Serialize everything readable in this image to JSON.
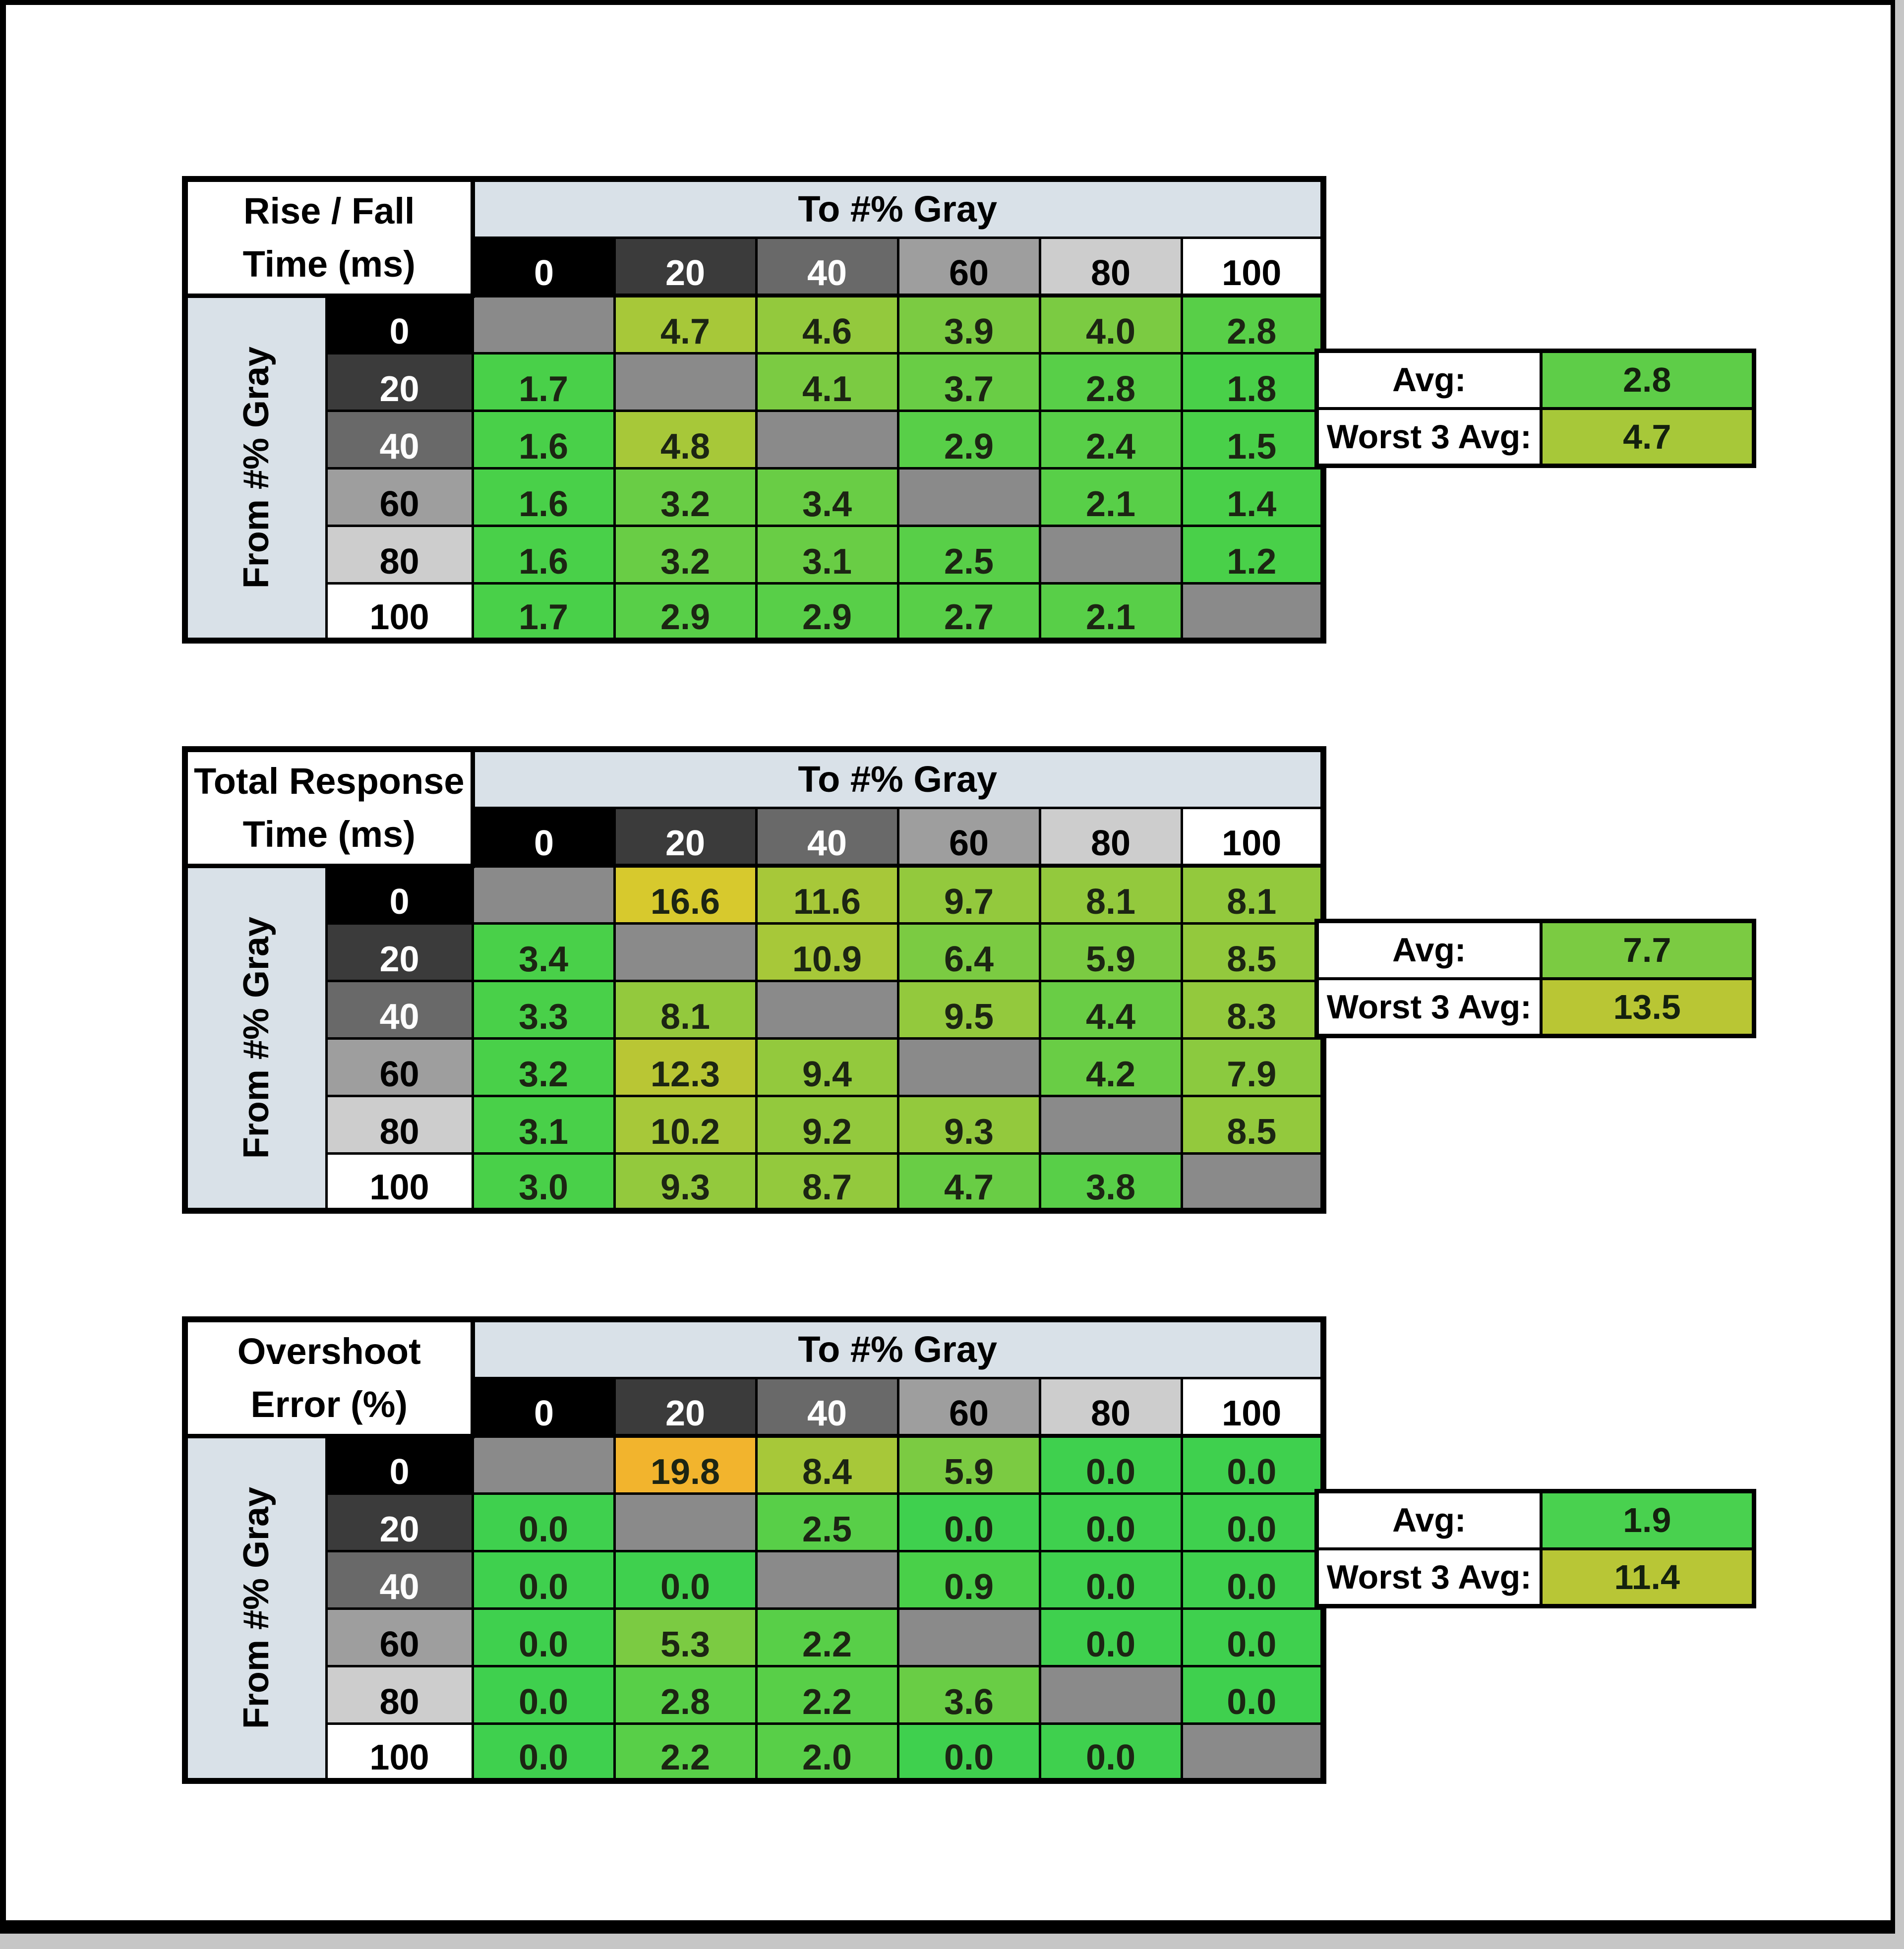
{
  "page": {
    "outer_background": "#c6c6c6",
    "canvas_background": "#ffffff",
    "frame_color": "#000000"
  },
  "shared": {
    "to_label": "To #% Gray",
    "from_label": "From #% Gray",
    "avg_label": "Avg:",
    "worst_label": "Worst 3 Avg:",
    "gray_levels": [
      "0",
      "20",
      "40",
      "60",
      "80",
      "100"
    ],
    "level_bg": [
      "#000000",
      "#3b3b3b",
      "#696969",
      "#9e9e9e",
      "#cdcdcd",
      "#ffffff"
    ],
    "level_fg": [
      "#ffffff",
      "#ffffff",
      "#ffffff",
      "#000000",
      "#000000",
      "#000000"
    ],
    "banner_bg": "#d9e1e8",
    "diagonal_bg": "#8a8a8a"
  },
  "chart_data": [
    {
      "type": "heatmap",
      "title": "Rise / Fall Time (ms)",
      "title_lines": [
        "Rise / Fall",
        "Time (ms)"
      ],
      "xlabel": "To #% Gray",
      "ylabel": "From #% Gray",
      "x_categories": [
        "0",
        "20",
        "40",
        "60",
        "80",
        "100"
      ],
      "y_categories": [
        "0",
        "20",
        "40",
        "60",
        "80",
        "100"
      ],
      "values": [
        [
          null,
          4.7,
          4.6,
          3.9,
          4.0,
          2.8
        ],
        [
          1.7,
          null,
          4.1,
          3.7,
          2.8,
          1.8
        ],
        [
          1.6,
          4.8,
          null,
          2.9,
          2.4,
          1.5
        ],
        [
          1.6,
          3.2,
          3.4,
          null,
          2.1,
          1.4
        ],
        [
          1.6,
          3.2,
          3.1,
          2.5,
          null,
          1.2
        ],
        [
          1.7,
          2.9,
          2.9,
          2.7,
          2.1,
          null
        ]
      ],
      "cell_colors": [
        [
          null,
          "#a7c839",
          "#93c93d",
          "#7bcb42",
          "#7bcb42",
          "#58cf48"
        ],
        [
          "#49d049",
          null,
          "#7bcb42",
          "#69cd45",
          "#58cf48",
          "#49d049"
        ],
        [
          "#49d049",
          "#a7c839",
          null,
          "#58cf48",
          "#58cf48",
          "#49d049"
        ],
        [
          "#49d049",
          "#69cd45",
          "#69cd45",
          null,
          "#58cf48",
          "#49d049"
        ],
        [
          "#49d049",
          "#69cd45",
          "#69cd45",
          "#58cf48",
          null,
          "#49d049"
        ],
        [
          "#49d049",
          "#58cf48",
          "#58cf48",
          "#58cf48",
          "#58cf48",
          null
        ]
      ],
      "avg": 2.8,
      "worst_3_avg": 4.7,
      "avg_color": "#5ecd48",
      "worst_color": "#a7c839"
    },
    {
      "type": "heatmap",
      "title": "Total Response Time (ms)",
      "title_lines": [
        "Total Response",
        "Time (ms)"
      ],
      "xlabel": "To #% Gray",
      "ylabel": "From #% Gray",
      "x_categories": [
        "0",
        "20",
        "40",
        "60",
        "80",
        "100"
      ],
      "y_categories": [
        "0",
        "20",
        "40",
        "60",
        "80",
        "100"
      ],
      "values": [
        [
          null,
          16.6,
          11.6,
          9.7,
          8.1,
          8.1
        ],
        [
          3.4,
          null,
          10.9,
          6.4,
          5.9,
          8.5
        ],
        [
          3.3,
          8.1,
          null,
          9.5,
          4.4,
          8.3
        ],
        [
          3.2,
          12.3,
          9.4,
          null,
          4.2,
          7.9
        ],
        [
          3.1,
          10.2,
          9.2,
          9.3,
          null,
          8.5
        ],
        [
          3.0,
          9.3,
          8.7,
          4.7,
          3.8,
          null
        ]
      ],
      "cell_colors": [
        [
          null,
          "#d7c92d",
          "#a7c839",
          "#93c93d",
          "#93c93d",
          "#93c93d"
        ],
        [
          "#49d049",
          null,
          "#a7c839",
          "#7bcb42",
          "#7bcb42",
          "#93c93d"
        ],
        [
          "#49d049",
          "#93c93d",
          null,
          "#93c93d",
          "#69cd45",
          "#93c93d"
        ],
        [
          "#49d049",
          "#b9c634",
          "#93c93d",
          null,
          "#69cd45",
          "#8bca3f"
        ],
        [
          "#49d049",
          "#a7c839",
          "#93c93d",
          "#93c93d",
          null,
          "#93c93d"
        ],
        [
          "#49d049",
          "#93c93d",
          "#93c93d",
          "#69cd45",
          "#58cf48",
          null
        ]
      ],
      "avg": 7.7,
      "worst_3_avg": 13.5,
      "avg_color": "#7bcb42",
      "worst_color": "#b9c634"
    },
    {
      "type": "heatmap",
      "title": "Overshoot Error (%)",
      "title_lines": [
        "Overshoot",
        "Error (%)"
      ],
      "xlabel": "To #% Gray",
      "ylabel": "From #% Gray",
      "x_categories": [
        "0",
        "20",
        "40",
        "60",
        "80",
        "100"
      ],
      "y_categories": [
        "0",
        "20",
        "40",
        "60",
        "80",
        "100"
      ],
      "values": [
        [
          null,
          19.8,
          8.4,
          5.9,
          0.0,
          0.0
        ],
        [
          0.0,
          null,
          2.5,
          0.0,
          0.0,
          0.0
        ],
        [
          0.0,
          0.0,
          null,
          0.9,
          0.0,
          0.0
        ],
        [
          0.0,
          5.3,
          2.2,
          null,
          0.0,
          0.0
        ],
        [
          0.0,
          2.8,
          2.2,
          3.6,
          null,
          0.0
        ],
        [
          0.0,
          2.2,
          2.0,
          0.0,
          0.0,
          null
        ]
      ],
      "cell_colors": [
        [
          null,
          "#f2b42d",
          "#a7c839",
          "#7bcb42",
          "#3fd04e",
          "#3fd04e"
        ],
        [
          "#3fd04e",
          null,
          "#58cf48",
          "#3fd04e",
          "#3fd04e",
          "#3fd04e"
        ],
        [
          "#3fd04e",
          "#3fd04e",
          null,
          "#49d049",
          "#3fd04e",
          "#3fd04e"
        ],
        [
          "#3fd04e",
          "#7bcb42",
          "#58cf48",
          null,
          "#3fd04e",
          "#3fd04e"
        ],
        [
          "#3fd04e",
          "#58cf48",
          "#58cf48",
          "#69cd45",
          null,
          "#3fd04e"
        ],
        [
          "#3fd04e",
          "#58cf48",
          "#58cf48",
          "#3fd04e",
          "#3fd04e",
          null
        ]
      ],
      "avg": 1.9,
      "worst_3_avg": 11.4,
      "avg_color": "#49d14f",
      "worst_color": "#b8c636"
    }
  ],
  "layout_tops": [
    345,
    1495,
    2645
  ]
}
